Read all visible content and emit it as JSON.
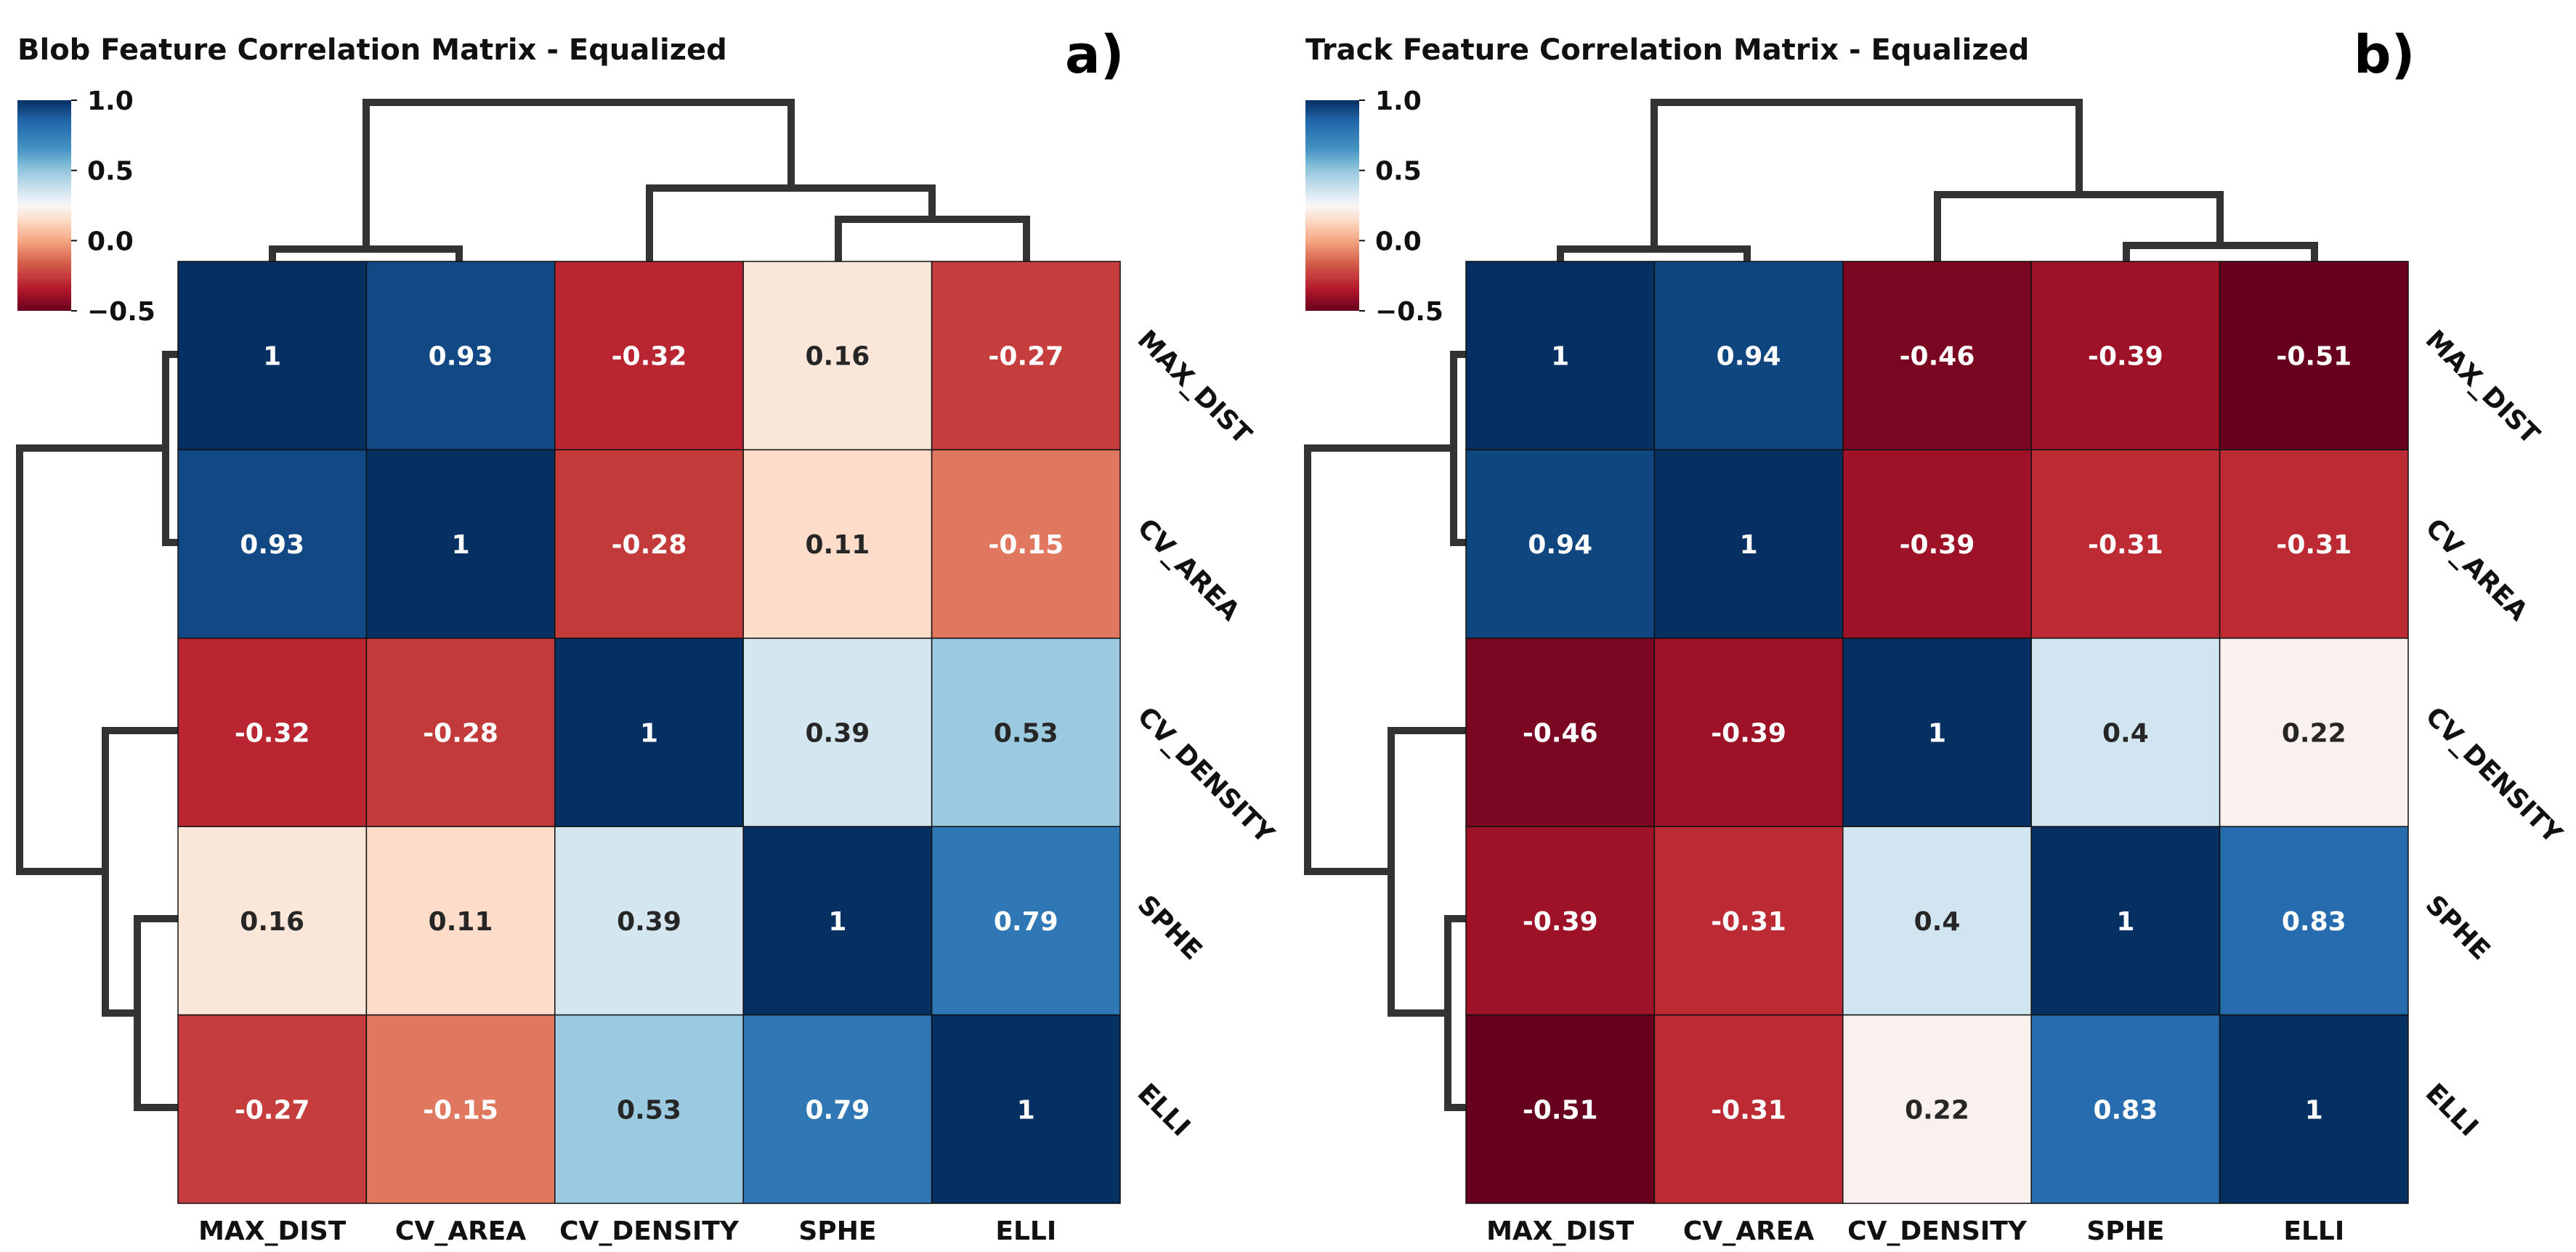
{
  "chart_data": [
    {
      "type": "heatmap",
      "title": "Blob Feature Correlation Matrix - Equalized",
      "panel_label": "a)",
      "row_labels": [
        "MAX_DIST",
        "CV_AREA",
        "CV_DENSITY",
        "SPHE",
        "ELLI"
      ],
      "col_labels": [
        "MAX_DIST",
        "CV_AREA",
        "CV_DENSITY",
        "SPHE",
        "ELLI"
      ],
      "values": [
        [
          1,
          0.93,
          -0.32,
          0.16,
          -0.27
        ],
        [
          0.93,
          1,
          -0.28,
          0.11,
          -0.15
        ],
        [
          -0.32,
          -0.28,
          1,
          0.39,
          0.53
        ],
        [
          0.16,
          0.11,
          0.39,
          1,
          0.79
        ],
        [
          -0.27,
          -0.15,
          0.53,
          0.79,
          1
        ]
      ],
      "value_labels": [
        [
          "1",
          "0.93",
          "-0.32",
          "0.16",
          "-0.27"
        ],
        [
          "0.93",
          "1",
          "-0.28",
          "0.11",
          "-0.15"
        ],
        [
          "-0.32",
          "-0.28",
          "1",
          "0.39",
          "0.53"
        ],
        [
          "0.16",
          "0.11",
          "0.39",
          "1",
          "0.79"
        ],
        [
          "-0.27",
          "-0.15",
          "0.53",
          "0.79",
          "1"
        ]
      ],
      "colorbar": {
        "range": [
          -0.5,
          1.0
        ],
        "ticks": [
          1.0,
          0.5,
          0.0,
          -0.5
        ],
        "tick_labels": [
          "1.0",
          "0.5",
          "0.0",
          "−0.5"
        ],
        "colormap": "RdBu"
      },
      "dendrogram": "hierarchical clustering on rows and columns",
      "grid": false
    },
    {
      "type": "heatmap",
      "title": "Track Feature Correlation Matrix - Equalized",
      "panel_label": "b)",
      "row_labels": [
        "MAX_DIST",
        "CV_AREA",
        "CV_DENSITY",
        "SPHE",
        "ELLI"
      ],
      "col_labels": [
        "MAX_DIST",
        "CV_AREA",
        "CV_DENSITY",
        "SPHE",
        "ELLI"
      ],
      "values": [
        [
          1,
          0.94,
          -0.46,
          -0.39,
          -0.51
        ],
        [
          0.94,
          1,
          -0.39,
          -0.31,
          -0.31
        ],
        [
          -0.46,
          -0.39,
          1,
          0.4,
          0.22
        ],
        [
          -0.39,
          -0.31,
          0.4,
          1,
          0.83
        ],
        [
          -0.51,
          -0.31,
          0.22,
          0.83,
          1
        ]
      ],
      "value_labels": [
        [
          "1",
          "0.94",
          "-0.46",
          "-0.39",
          "-0.51"
        ],
        [
          "0.94",
          "1",
          "-0.39",
          "-0.31",
          "-0.31"
        ],
        [
          "-0.46",
          "-0.39",
          "1",
          "0.4",
          "0.22"
        ],
        [
          "-0.39",
          "-0.31",
          "0.4",
          "1",
          "0.83"
        ],
        [
          "-0.51",
          "-0.31",
          "0.22",
          "0.83",
          "1"
        ]
      ],
      "colorbar": {
        "range": [
          -0.5,
          1.0
        ],
        "ticks": [
          1.0,
          0.5,
          0.0,
          -0.5
        ],
        "tick_labels": [
          "1.0",
          "0.5",
          "0.0",
          "−0.5"
        ],
        "colormap": "RdBu"
      },
      "dendrogram": "hierarchical clustering on rows and columns",
      "grid": false
    }
  ],
  "colors": {
    "dendrogram": "#333333",
    "dark_text": "#262626",
    "light_text": "#ffffff"
  }
}
